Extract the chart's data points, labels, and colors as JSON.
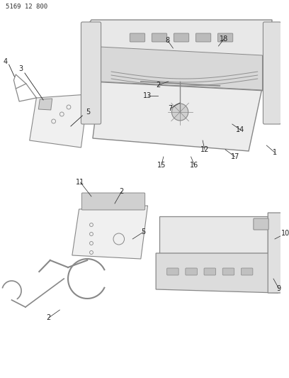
{
  "header_text": "5169 12 800",
  "background_color": "#ffffff",
  "line_color": "#888888",
  "text_color": "#222222",
  "fill_light": "#f0f0f0",
  "fill_mid": "#e0e0e0",
  "fill_dark": "#d0d0d0"
}
